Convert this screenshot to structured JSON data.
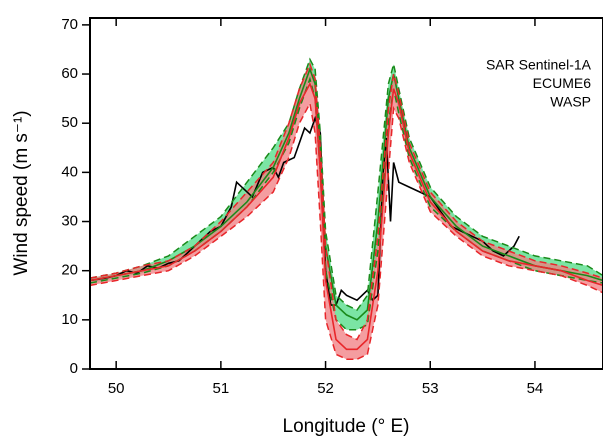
{
  "chart_data": {
    "type": "line",
    "x_label": "Longitude (° E)",
    "y_label": "Wind speed (m s⁻¹)",
    "xlim": [
      49.75,
      54.65
    ],
    "xticks": [
      50,
      51,
      52,
      53,
      54
    ],
    "ylim": [
      0,
      71.4
    ],
    "yticks": [
      0,
      10,
      20,
      30,
      40,
      50,
      60,
      70
    ],
    "legend": "upper right",
    "series": [
      {
        "name": "SAR Sentinel-1A",
        "color": "#000000",
        "x": [
          49.75,
          49.9,
          50.0,
          50.1,
          50.2,
          50.3,
          50.4,
          50.5,
          50.6,
          50.7,
          50.8,
          50.9,
          51.0,
          51.1,
          51.15,
          51.2,
          51.3,
          51.4,
          51.5,
          51.55,
          51.6,
          51.7,
          51.75,
          51.8,
          51.85,
          51.9,
          51.95,
          52.0,
          52.05,
          52.1,
          52.15,
          52.2,
          52.3,
          52.4,
          52.45,
          52.5,
          52.55,
          52.58,
          52.62,
          52.65,
          52.7,
          52.8,
          52.9,
          53.0,
          53.1,
          53.2,
          53.3,
          53.4,
          53.5,
          53.6,
          53.7,
          53.8,
          53.85
        ],
        "values": [
          18,
          18.5,
          19,
          20,
          19.5,
          21,
          20.5,
          21.5,
          22,
          24,
          26,
          28,
          29,
          33,
          38,
          37,
          35,
          40,
          41,
          39,
          42,
          43,
          46,
          49,
          48,
          51,
          48,
          20,
          13,
          13,
          16,
          15,
          14,
          16,
          14,
          15,
          40,
          47,
          30,
          42,
          38,
          37,
          36,
          35,
          32,
          29,
          28,
          27,
          26,
          24,
          23,
          25,
          27
        ]
      },
      {
        "name": "ECUME6",
        "color": "#1a8a1a",
        "fill": "#4fdc85",
        "x": [
          49.75,
          50.0,
          50.25,
          50.5,
          50.75,
          51.0,
          51.25,
          51.5,
          51.65,
          51.75,
          51.85,
          51.9,
          51.95,
          52.0,
          52.1,
          52.2,
          52.3,
          52.4,
          52.5,
          52.6,
          52.65,
          52.7,
          52.8,
          53.0,
          53.25,
          53.5,
          53.75,
          54.0,
          54.25,
          54.5,
          54.65
        ],
        "values": [
          18,
          19,
          20,
          22,
          25,
          29,
          34,
          41,
          48,
          55,
          61,
          58,
          45,
          25,
          13,
          11,
          10,
          12,
          30,
          55,
          60,
          55,
          45,
          35,
          29,
          25,
          23,
          21,
          20,
          19,
          18
        ],
        "lower": [
          17.5,
          18.5,
          19.5,
          21,
          24,
          28,
          33,
          40,
          46,
          53,
          59,
          55,
          40,
          20,
          10,
          8,
          8,
          9,
          24,
          50,
          57,
          52,
          43,
          33,
          28,
          24,
          22,
          20,
          19,
          18,
          17.5
        ],
        "upper": [
          18.5,
          19.5,
          21,
          23,
          27,
          31,
          38,
          45,
          50,
          57,
          63,
          61,
          48,
          28,
          15,
          13,
          12,
          15,
          36,
          58,
          62,
          57,
          47,
          37,
          31,
          27,
          25,
          23,
          22,
          21,
          19
        ]
      },
      {
        "name": "WASP",
        "color": "#e8262a",
        "fill": "#f07c80",
        "x": [
          49.75,
          50.0,
          50.25,
          50.5,
          50.75,
          51.0,
          51.25,
          51.5,
          51.65,
          51.75,
          51.85,
          51.9,
          51.95,
          52.0,
          52.1,
          52.2,
          52.3,
          52.4,
          52.5,
          52.6,
          52.65,
          52.7,
          52.8,
          53.0,
          53.25,
          53.5,
          53.75,
          54.0,
          54.25,
          54.5,
          54.65
        ],
        "values": [
          18,
          19,
          20,
          21,
          24,
          28,
          33,
          39,
          47,
          54,
          58,
          55,
          40,
          18,
          6,
          4,
          4,
          6,
          20,
          48,
          57,
          54,
          44,
          34,
          28,
          24,
          22,
          21,
          20,
          18,
          17
        ],
        "lower": [
          17,
          18,
          19,
          20,
          23,
          27,
          31,
          36,
          43,
          50,
          54,
          48,
          30,
          10,
          3,
          2,
          2,
          3,
          13,
          40,
          53,
          51,
          42,
          32,
          27,
          23,
          21,
          20,
          19,
          17,
          15.5
        ],
        "upper": [
          18.5,
          19.5,
          21,
          22,
          25,
          30,
          36,
          42,
          50,
          57,
          62,
          59,
          45,
          25,
          10,
          7,
          6,
          10,
          27,
          53,
          60,
          56,
          46,
          36,
          30,
          26,
          24,
          22,
          21,
          19.5,
          18.5
        ]
      }
    ]
  }
}
